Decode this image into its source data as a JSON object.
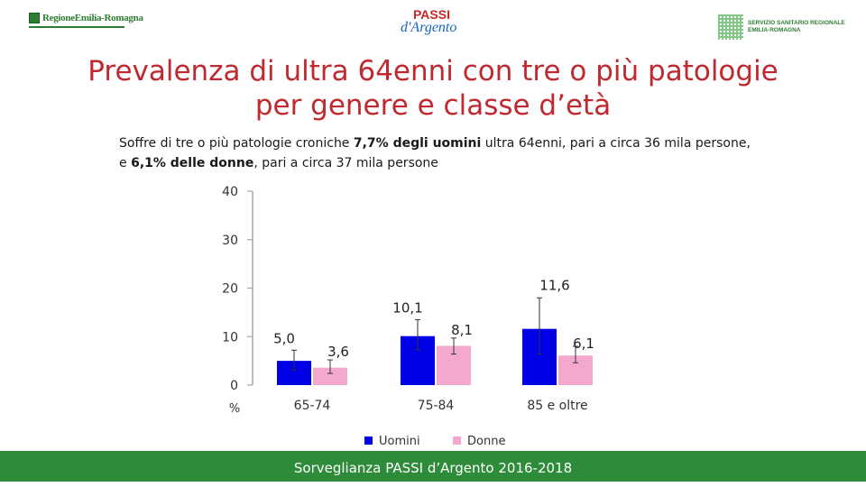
{
  "header": {
    "left_logo_text": "RegioneEmilia-Romagna",
    "center_logo_line1": "PASSI",
    "center_logo_line2": "d'Argento",
    "right_logo_line1": "SERVIZIO SANITARIO REGIONALE",
    "right_logo_line2": "EMILIA-ROMAGNA"
  },
  "title_line1": "Prevalenza di ultra 64enni con tre o più patologie",
  "title_line2": "per genere e classe d’età",
  "subtitle": {
    "p1": "Soffre di tre o più patologie croniche ",
    "b1": "7,7% degli uomini",
    "p2": " ultra 64enni, pari a circa 36 mila persone,",
    "p3": "e ",
    "b2": "6,1% delle donne",
    "p4": ", pari a circa 37 mila persone"
  },
  "footer": "Sorveglianza PASSI d’Argento 2016-2018",
  "colors": {
    "men": "#0000e6",
    "women": "#f4a8cf",
    "title": "#c0292f",
    "footer": "#2e8b3a"
  },
  "chart_data": {
    "type": "bar",
    "categories": [
      "65-74",
      "75-84",
      "85 e oltre"
    ],
    "series": [
      {
        "name": "Uomini",
        "values": [
          5.0,
          10.1,
          11.6
        ],
        "labels": [
          "5,0",
          "10,1",
          "11,6"
        ],
        "err_low": [
          3.1,
          7.3,
          6.4
        ],
        "err_high": [
          7.2,
          13.5,
          18.0
        ]
      },
      {
        "name": "Donne",
        "values": [
          3.6,
          8.1,
          6.1
        ],
        "labels": [
          "3,6",
          "8,1",
          "6,1"
        ],
        "err_low": [
          2.4,
          6.4,
          4.6
        ],
        "err_high": [
          5.2,
          9.7,
          8.0
        ]
      }
    ],
    "yticks": [
      "0",
      "10",
      "20",
      "30",
      "40"
    ],
    "ylim": [
      0,
      40
    ],
    "unit_label": "%",
    "legend_position": "bottom"
  }
}
